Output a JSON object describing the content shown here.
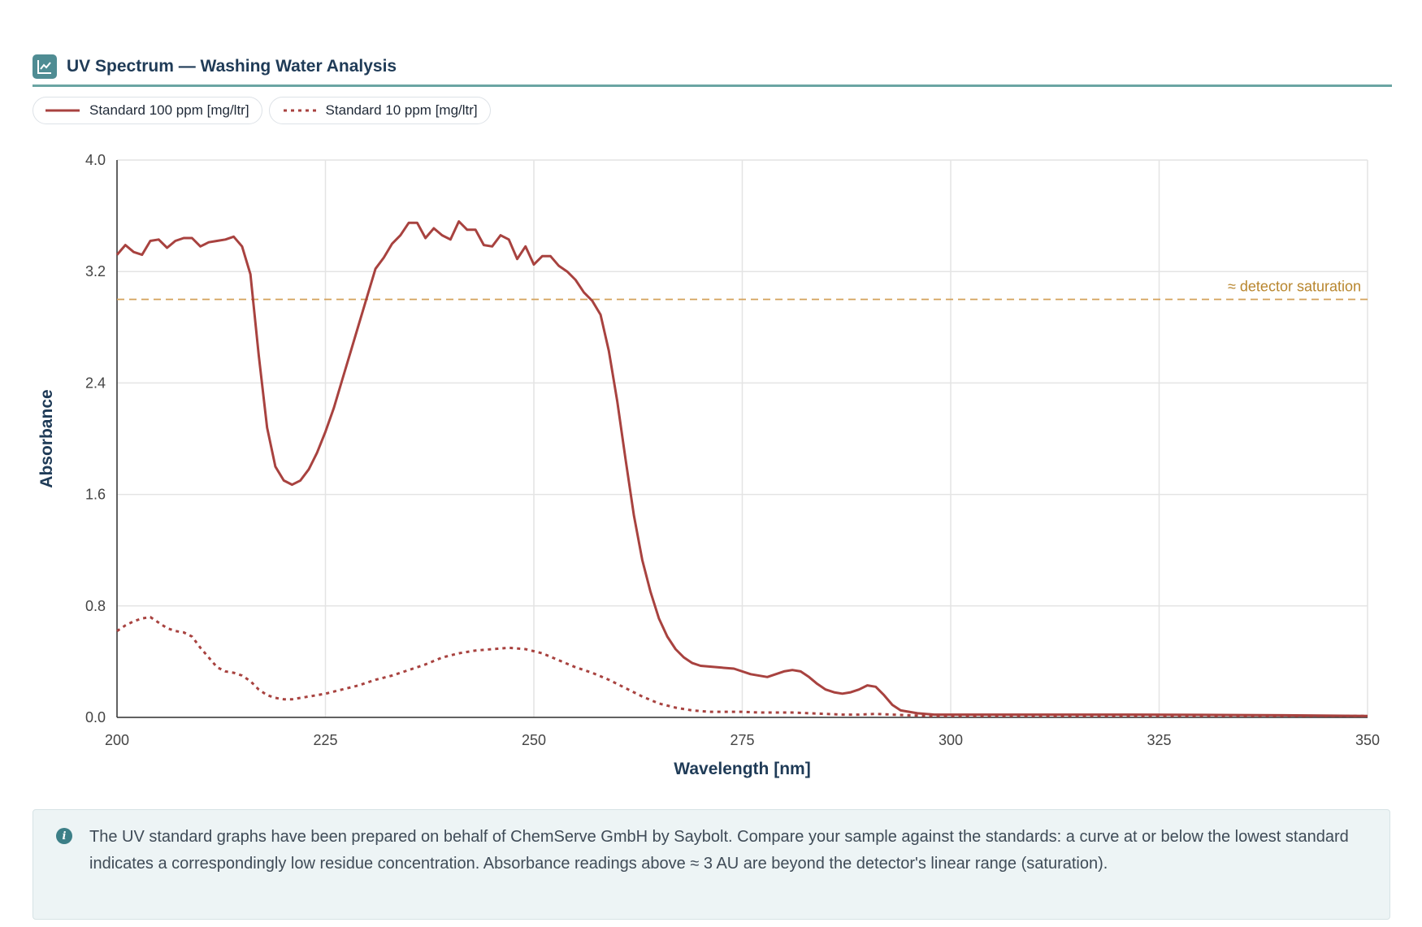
{
  "header": {
    "title": "UV Spectrum — Washing Water Analysis",
    "icon": "line-chart-icon"
  },
  "legend": [
    {
      "label": "Standard 100 ppm [mg/ltr]",
      "style": "solid"
    },
    {
      "label": "Standard 10 ppm [mg/ltr]",
      "style": "dotted"
    }
  ],
  "chart_data": {
    "type": "line",
    "xlabel": "Wavelength [nm]",
    "ylabel": "Absorbance",
    "xlim": [
      200,
      350
    ],
    "ylim": [
      0,
      4
    ],
    "xticks": [
      "200",
      "225",
      "250",
      "275",
      "300",
      "325",
      "350"
    ],
    "yticks": [
      "0.0",
      "0.8",
      "1.6",
      "2.4",
      "3.2",
      "4.0"
    ],
    "grid": true,
    "colors": {
      "series": "#a8423f",
      "saturation": "#d4a15a",
      "saturation_text": "#b8862e",
      "grid": "#e4e4e4",
      "axis": "#333333"
    },
    "reference_line": {
      "y": 3.0,
      "label": "≈ detector saturation"
    },
    "series": [
      {
        "name": "Standard 100 ppm [mg/ltr]",
        "style": "solid",
        "x": [
          200,
          201,
          202,
          203,
          204,
          205,
          206,
          207,
          208,
          209,
          210,
          211,
          212,
          213,
          214,
          215,
          216,
          217,
          218,
          219,
          220,
          221,
          222,
          223,
          224,
          225,
          226,
          227,
          228,
          229,
          230,
          231,
          232,
          233,
          234,
          235,
          236,
          237,
          238,
          239,
          240,
          241,
          242,
          243,
          244,
          245,
          246,
          247,
          248,
          249,
          250,
          251,
          252,
          253,
          254,
          255,
          256,
          257,
          258,
          259,
          260,
          261,
          262,
          263,
          264,
          265,
          266,
          267,
          268,
          269,
          270,
          272,
          274,
          276,
          278,
          280,
          281,
          282,
          283,
          284,
          285,
          286,
          287,
          288,
          289,
          290,
          291,
          292,
          293,
          294,
          295,
          296,
          297,
          298,
          300,
          305,
          310,
          320,
          330,
          340,
          350
        ],
        "y": [
          3.32,
          3.39,
          3.34,
          3.32,
          3.42,
          3.43,
          3.37,
          3.42,
          3.44,
          3.44,
          3.38,
          3.41,
          3.42,
          3.43,
          3.45,
          3.38,
          3.18,
          2.6,
          2.08,
          1.8,
          1.7,
          1.67,
          1.7,
          1.78,
          1.9,
          2.05,
          2.22,
          2.42,
          2.62,
          2.82,
          3.02,
          3.22,
          3.3,
          3.4,
          3.46,
          3.55,
          3.55,
          3.44,
          3.51,
          3.46,
          3.43,
          3.56,
          3.5,
          3.5,
          3.39,
          3.38,
          3.46,
          3.43,
          3.29,
          3.38,
          3.25,
          3.31,
          3.31,
          3.24,
          3.2,
          3.14,
          3.05,
          2.99,
          2.89,
          2.63,
          2.27,
          1.85,
          1.45,
          1.13,
          0.9,
          0.71,
          0.58,
          0.49,
          0.43,
          0.39,
          0.37,
          0.36,
          0.35,
          0.31,
          0.29,
          0.33,
          0.34,
          0.33,
          0.29,
          0.24,
          0.2,
          0.18,
          0.17,
          0.18,
          0.2,
          0.23,
          0.22,
          0.16,
          0.09,
          0.05,
          0.04,
          0.03,
          0.025,
          0.02,
          0.02,
          0.02,
          0.02,
          0.02,
          0.018,
          0.015,
          0.01
        ]
      },
      {
        "name": "Standard 10 ppm [mg/ltr]",
        "style": "dotted",
        "x": [
          200,
          201,
          202,
          203,
          204,
          205,
          206,
          207,
          208,
          209,
          210,
          211,
          212,
          213,
          214,
          215,
          216,
          217,
          218,
          219,
          220,
          221,
          222,
          223,
          224,
          225,
          227,
          229,
          231,
          233,
          235,
          237,
          239,
          241,
          243,
          245,
          247,
          249,
          251,
          253,
          255,
          257,
          259,
          261,
          263,
          265,
          267,
          269,
          271,
          273,
          275,
          277,
          279,
          281,
          283,
          285,
          287,
          289,
          291,
          293,
          295,
          298,
          300,
          310,
          320,
          330,
          340,
          350
        ],
        "y": [
          0.62,
          0.66,
          0.69,
          0.71,
          0.72,
          0.68,
          0.64,
          0.62,
          0.61,
          0.58,
          0.5,
          0.43,
          0.36,
          0.33,
          0.32,
          0.3,
          0.26,
          0.2,
          0.16,
          0.14,
          0.13,
          0.13,
          0.14,
          0.15,
          0.16,
          0.17,
          0.2,
          0.23,
          0.27,
          0.3,
          0.34,
          0.38,
          0.43,
          0.46,
          0.48,
          0.49,
          0.5,
          0.49,
          0.46,
          0.41,
          0.36,
          0.32,
          0.27,
          0.21,
          0.15,
          0.1,
          0.07,
          0.05,
          0.04,
          0.04,
          0.04,
          0.035,
          0.035,
          0.035,
          0.03,
          0.025,
          0.02,
          0.02,
          0.025,
          0.02,
          0.015,
          0.01,
          0.01,
          0.01,
          0.01,
          0.01,
          0.01,
          0.01
        ]
      }
    ]
  },
  "note": {
    "icon": "info-icon",
    "text": "The UV standard graphs have been prepared on behalf of ChemServe GmbH by Saybolt. Compare your sample against the standards: a curve at or below the lowest standard indicates a correspondingly low residue concentration. Absorbance readings above ≈ 3 AU are beyond the detector's linear range (saturation)."
  }
}
